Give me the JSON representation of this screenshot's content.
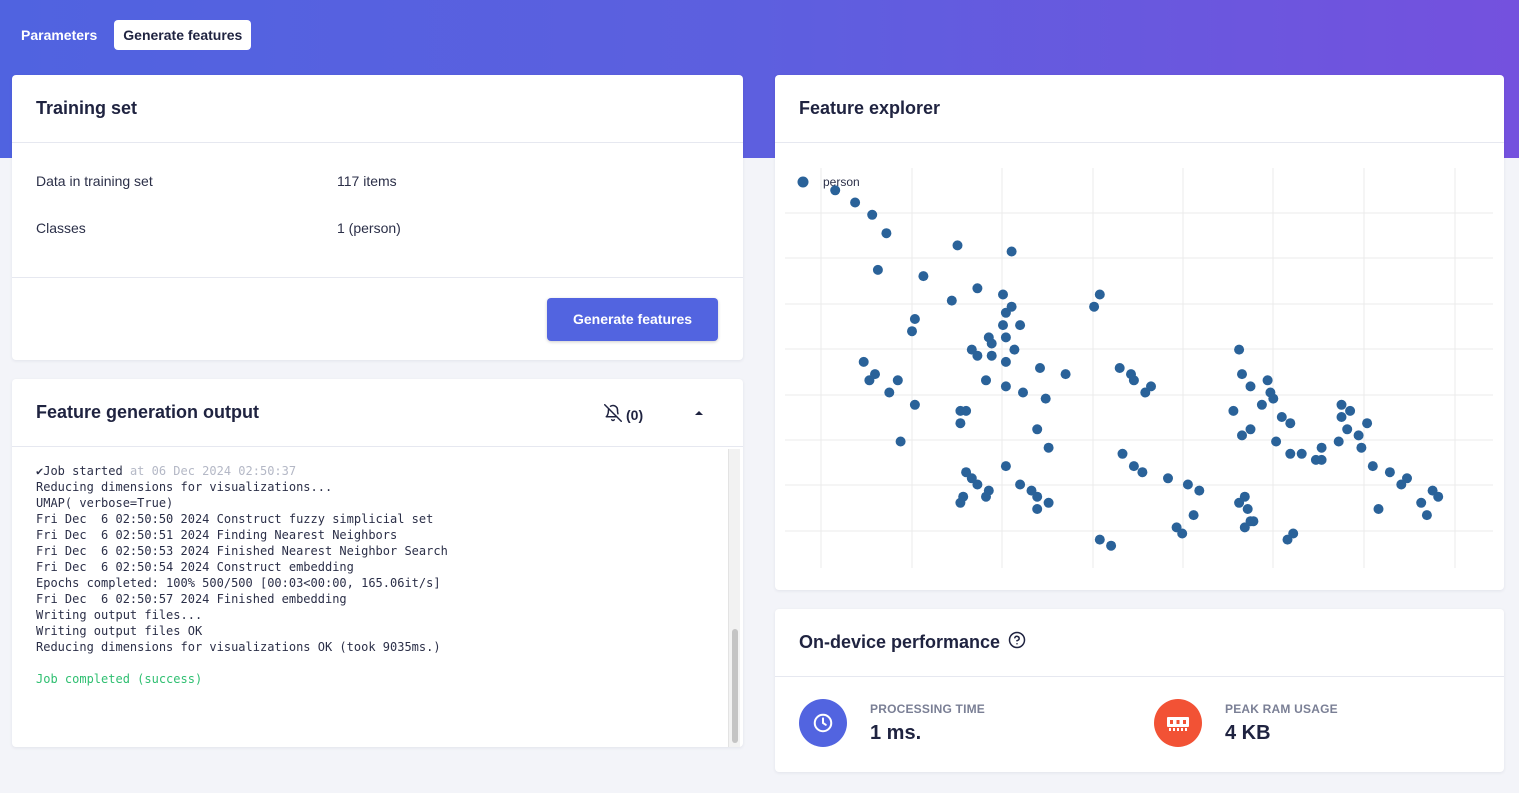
{
  "tabs": [
    {
      "label": "Parameters",
      "active": false
    },
    {
      "label": "Generate features",
      "active": true
    }
  ],
  "training_set": {
    "title": "Training set",
    "rows": [
      {
        "label": "Data in training set",
        "value": "117 items"
      },
      {
        "label": "Classes",
        "value": "1 (person)"
      }
    ],
    "button_label": "Generate features"
  },
  "output": {
    "title": "Feature generation output",
    "notification_count": "(0)",
    "job_started": "✔Job started",
    "job_started_time": "at 06 Dec 2024 02:50:37",
    "lines": [
      "Reducing dimensions for visualizations...",
      "UMAP( verbose=True)",
      "Fri Dec  6 02:50:50 2024 Construct fuzzy simplicial set",
      "Fri Dec  6 02:50:51 2024 Finding Nearest Neighbors",
      "Fri Dec  6 02:50:53 2024 Finished Nearest Neighbor Search",
      "Fri Dec  6 02:50:54 2024 Construct embedding",
      "Epochs completed: 100% 500/500 [00:03<00:00, 165.06it/s]",
      "Fri Dec  6 02:50:57 2024 Finished embedding",
      "Writing output files...",
      "Writing output files OK",
      "Reducing dimensions for visualizations OK (took 9035ms.)"
    ],
    "completed": "Job completed (success)"
  },
  "explorer": {
    "title": "Feature explorer",
    "legend_label": "person",
    "point_color": "#2a6299"
  },
  "chart_data": {
    "type": "scatter",
    "series": [
      {
        "name": "person",
        "x": [
          -0.05,
          0.02,
          0.13,
          0.08,
          0.38,
          0.57,
          0.1,
          0.26,
          0.45,
          0.54,
          0.55,
          0.36,
          0.57,
          0.54,
          0.88,
          0.86,
          0.05,
          0.09,
          0.07,
          0.17,
          0.14,
          0.23,
          0.18,
          0.41,
          0.66,
          0.7,
          0.55,
          0.96,
          0.4,
          0.39,
          0.48,
          0.49,
          0.45,
          0.43,
          0.41,
          0.66,
          0.66,
          0.7,
          0.64,
          0.6,
          0.39,
          0.39,
          0.69,
          0.61,
          0.55,
          0.48,
          0.76,
          0.67,
          0.45,
          0.43,
          0.49,
          0.22,
          0.23,
          0.6,
          0.55,
          0.5,
          0.58,
          0.5,
          0.55,
          0.95,
          0.99,
          1.0,
          1.06,
          1.04,
          1.37,
          1.38,
          1.47,
          1.41,
          1.48,
          1.49,
          1.45,
          1.35,
          1.52,
          1.55,
          1.41,
          1.38,
          1.5,
          1.66,
          1.59,
          1.64,
          1.0,
          1.03,
          1.12,
          1.19,
          1.23,
          1.39,
          1.37,
          1.4,
          1.21,
          1.42,
          1.39,
          1.56,
          1.54,
          1.73,
          1.76,
          1.73,
          1.82,
          1.75,
          1.79,
          1.72,
          1.8,
          1.55,
          1.66,
          1.84,
          1.9,
          1.96,
          1.94,
          2.05,
          2.07,
          2.01,
          1.86,
          2.03,
          1.41,
          1.15,
          1.17,
          0.88,
          0.92
        ],
        "y": [
          6.2,
          6.0,
          5.5,
          5.8,
          5.3,
          5.2,
          4.9,
          4.8,
          4.6,
          4.5,
          4.2,
          4.4,
          4.3,
          4.0,
          4.5,
          4.3,
          3.4,
          3.2,
          3.1,
          3.1,
          2.9,
          2.7,
          2.1,
          2.6,
          2.3,
          2.0,
          1.7,
          1.9,
          1.2,
          1.1,
          1.2,
          1.3,
          1.4,
          1.5,
          1.6,
          1.0,
          1.2,
          1.1,
          1.3,
          1.4,
          2.4,
          2.6,
          2.8,
          2.9,
          3.0,
          3.1,
          3.2,
          3.3,
          3.5,
          3.6,
          3.8,
          3.9,
          4.1,
          4.0,
          3.8,
          3.7,
          3.6,
          3.5,
          3.4,
          3.3,
          3.2,
          3.1,
          3.0,
          2.9,
          3.6,
          3.2,
          3.1,
          3.0,
          2.9,
          2.8,
          2.7,
          2.6,
          2.5,
          2.4,
          2.3,
          2.2,
          2.1,
          2.0,
          1.9,
          1.8,
          1.7,
          1.6,
          1.5,
          1.4,
          1.3,
          1.2,
          1.1,
          1.0,
          0.9,
          0.8,
          0.7,
          0.6,
          0.5,
          2.7,
          2.6,
          2.5,
          2.4,
          2.3,
          2.2,
          2.1,
          2.0,
          1.9,
          1.8,
          1.7,
          1.6,
          1.5,
          1.4,
          1.3,
          1.2,
          1.1,
          1.0,
          0.9,
          0.8,
          0.7,
          0.6,
          0.5,
          0.4
        ],
        "note_unused": ""
      }
    ],
    "legend_position": "top-left",
    "grid": true
  },
  "performance": {
    "title": "On-device performance",
    "metrics": [
      {
        "label": "PROCESSING TIME",
        "value": "1 ms.",
        "color": "#5264e0",
        "icon": "clock-icon"
      },
      {
        "label": "PEAK RAM USAGE",
        "value": "4 KB",
        "color": "#f25235",
        "icon": "memory-icon"
      }
    ]
  }
}
